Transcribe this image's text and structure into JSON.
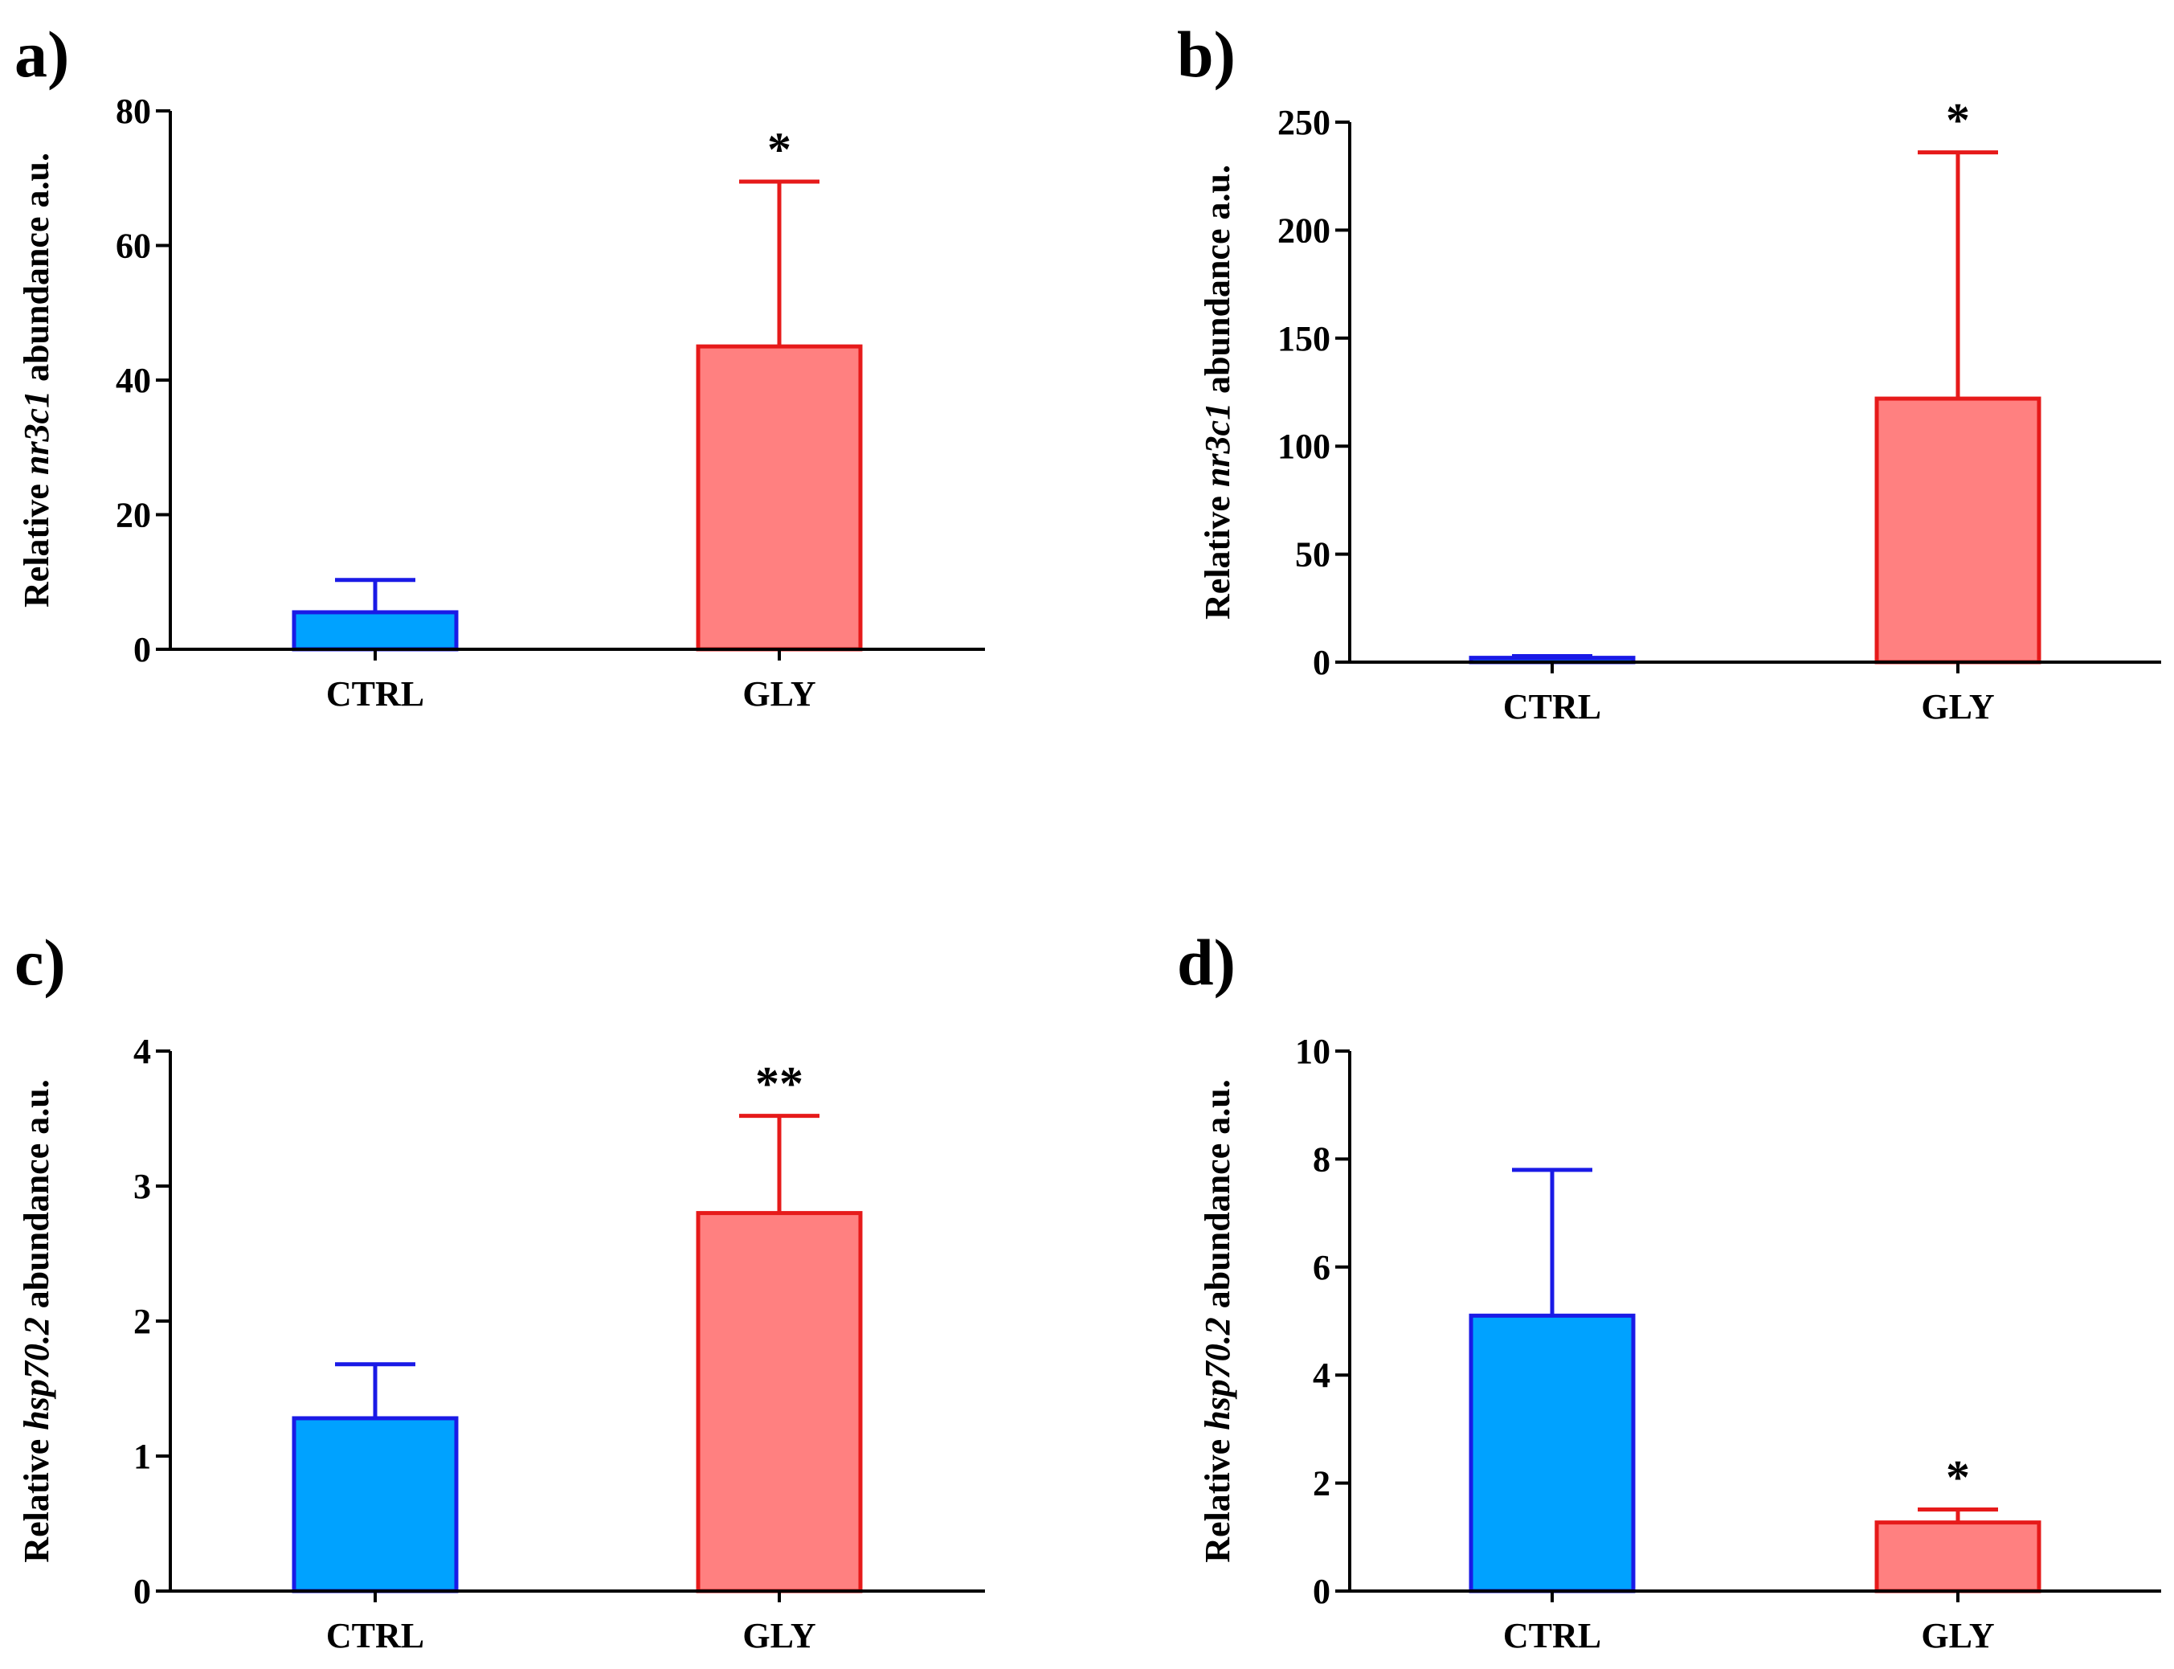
{
  "chart_data": [
    {
      "type": "bar",
      "panel_label": "a)",
      "categories": [
        "CTRL",
        "GLY"
      ],
      "values": [
        5.5,
        45
      ],
      "errors": [
        4.8,
        24.5
      ],
      "colors": [
        "#00A2FF",
        "#FF8080"
      ],
      "edge_colors": [
        "#1A1AE6",
        "#E61A1A"
      ],
      "significance": [
        "",
        "*"
      ],
      "ylabel_pre": "Relative ",
      "ylabel_gene": "nr3c1",
      "ylabel_post": " abundance a.u.",
      "ylim": [
        0,
        80
      ],
      "yticks": [
        "0",
        "20",
        "40",
        "60",
        "80"
      ],
      "xlabel": ""
    },
    {
      "type": "bar",
      "panel_label": "b)",
      "categories": [
        "CTRL",
        "GLY"
      ],
      "values": [
        2,
        122
      ],
      "errors": [
        0.8,
        114
      ],
      "colors": [
        "#00A2FF",
        "#FF8080"
      ],
      "edge_colors": [
        "#1A1AE6",
        "#E61A1A"
      ],
      "significance": [
        "",
        "*"
      ],
      "ylabel_pre": "Relative ",
      "ylabel_gene": "nr3c1",
      "ylabel_post": " abundance a.u.",
      "ylim": [
        0,
        250
      ],
      "yticks": [
        "0",
        "50",
        "100",
        "150",
        "200",
        "250"
      ],
      "xlabel": ""
    },
    {
      "type": "bar",
      "panel_label": "c)",
      "categories": [
        "CTRL",
        "GLY"
      ],
      "values": [
        1.28,
        2.8
      ],
      "errors": [
        0.4,
        0.72
      ],
      "colors": [
        "#00A2FF",
        "#FF8080"
      ],
      "edge_colors": [
        "#1A1AE6",
        "#E61A1A"
      ],
      "significance": [
        "",
        "**"
      ],
      "ylabel_pre": "Relative ",
      "ylabel_gene": "hsp70.2",
      "ylabel_post": " abundance a.u.",
      "ylim": [
        0,
        4
      ],
      "yticks": [
        "0",
        "1",
        "2",
        "3",
        "4"
      ],
      "xlabel": ""
    },
    {
      "type": "bar",
      "panel_label": "d)",
      "categories": [
        "CTRL",
        "GLY"
      ],
      "values": [
        5.1,
        1.27
      ],
      "errors": [
        2.7,
        0.24
      ],
      "colors": [
        "#00A2FF",
        "#FF8080"
      ],
      "edge_colors": [
        "#1A1AE6",
        "#E61A1A"
      ],
      "significance": [
        "",
        "*"
      ],
      "ylabel_pre": "Relative ",
      "ylabel_gene": "hsp70.2",
      "ylabel_post": " abundance a.u.",
      "ylim": [
        0,
        10
      ],
      "yticks": [
        "0",
        "2",
        "4",
        "6",
        "8",
        "10"
      ],
      "xlabel": ""
    }
  ]
}
